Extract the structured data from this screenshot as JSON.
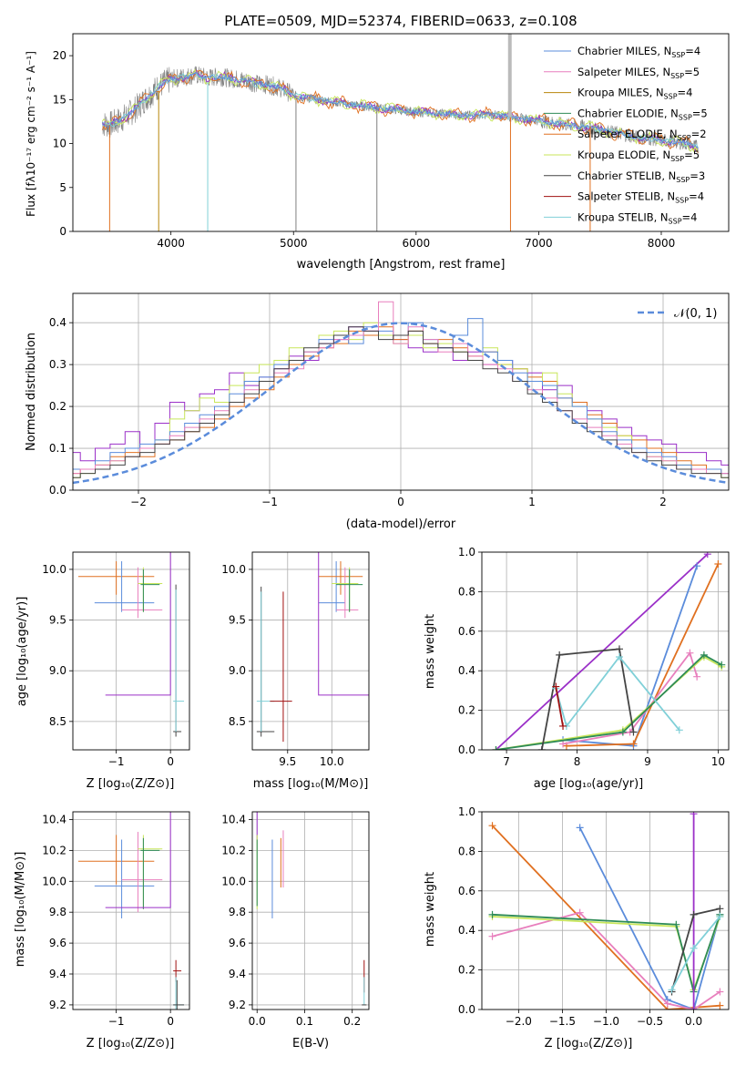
{
  "colors": {
    "chabrier_miles": "#5b8cdb",
    "salpeter_miles": "#e87fbd",
    "kroupa_miles": "#b8860b",
    "chabrier_elodie": "#2e8b57",
    "salpeter_elodie": "#e07020",
    "kroupa_elodie": "#c8e65a",
    "chabrier_stelib": "#444444",
    "salpeter_stelib": "#a01010",
    "kroupa_stelib": "#80d0d8",
    "purple": "#9b30c8",
    "gray_data": "#808080",
    "gauss": "#5b8cdb"
  },
  "chart_data": [
    {
      "id": "spectrum",
      "type": "line",
      "title": "PLATE=0509, MJD=52374, FIBERID=0633, z=0.108",
      "xlabel": "wavelength [Angstrom, rest frame]",
      "ylabel": "Flux [fλ10⁻¹⁷ erg cm⁻² s⁻¹ A⁻¹]",
      "xlim": [
        3200,
        8550
      ],
      "ylim": [
        0,
        22.5
      ],
      "xticks": [
        "4000",
        "5000",
        "6000",
        "7000",
        "8000"
      ],
      "xtick_values": [
        4000,
        5000,
        6000,
        7000,
        8000
      ],
      "yticks": [
        "0",
        "5",
        "10",
        "15",
        "20"
      ],
      "ytick_values": [
        0,
        5,
        10,
        15,
        20
      ],
      "continuum": {
        "x": [
          3440,
          3500,
          3600,
          3700,
          3800,
          3900,
          4000,
          4100,
          4200,
          4300,
          4400,
          4500,
          4600,
          4700,
          4800,
          4900,
          5000,
          5100,
          5200,
          5400,
          5600,
          5800,
          6000,
          6200,
          6400,
          6600,
          6800,
          7000,
          7200,
          7400,
          7600,
          7800,
          8000,
          8200,
          8300
        ],
        "y": [
          12.3,
          12.1,
          12.8,
          13.8,
          15.2,
          16.5,
          17.3,
          17.6,
          17.8,
          17.5,
          17.6,
          17.4,
          17.2,
          16.8,
          16.7,
          16.3,
          15.5,
          15.2,
          15.0,
          14.6,
          14.2,
          13.9,
          13.6,
          13.4,
          13.2,
          13.3,
          13.0,
          12.6,
          12.2,
          11.9,
          11.3,
          10.7,
          10.4,
          10.0,
          9.6
        ]
      },
      "legend": [
        {
          "label": "Chabrier MILES, N",
          "sub": "SSP",
          "tail": "=4",
          "color_key": "chabrier_miles"
        },
        {
          "label": "Salpeter MILES, N",
          "sub": "SSP",
          "tail": "=5",
          "color_key": "salpeter_miles"
        },
        {
          "label": "Kroupa MILES, N",
          "sub": "SSP",
          "tail": "=4",
          "color_key": "kroupa_miles"
        },
        {
          "label": "Chabrier ELODIE, N",
          "sub": "SSP",
          "tail": "=5",
          "color_key": "chabrier_elodie"
        },
        {
          "label": "Salpeter ELODIE, N",
          "sub": "SSP",
          "tail": "=2",
          "color_key": "salpeter_elodie"
        },
        {
          "label": "Kroupa ELODIE, N",
          "sub": "SSP",
          "tail": "=5",
          "color_key": "kroupa_elodie"
        },
        {
          "label": "Chabrier STELIB, N",
          "sub": "SSP",
          "tail": "=3",
          "color_key": "chabrier_stelib"
        },
        {
          "label": "Salpeter STELIB, N",
          "sub": "SSP",
          "tail": "=4",
          "color_key": "salpeter_stelib"
        },
        {
          "label": "Kroupa STELIB, N",
          "sub": "SSP",
          "tail": "=4",
          "color_key": "kroupa_stelib"
        }
      ],
      "legend_position": "upper right"
    },
    {
      "id": "residuals",
      "type": "line",
      "xlabel": "(data-model)/error",
      "ylabel": "Normed distribution",
      "xlim": [
        -2.5,
        2.5
      ],
      "ylim": [
        0,
        0.47
      ],
      "xticks": [
        "−2",
        "−1",
        "0",
        "1",
        "2"
      ],
      "xtick_values": [
        -2,
        -1,
        0,
        1,
        2
      ],
      "yticks": [
        "0.0",
        "0.1",
        "0.2",
        "0.3",
        "0.4"
      ],
      "ytick_values": [
        0,
        0.1,
        0.2,
        0.3,
        0.4
      ],
      "grid": true,
      "gauss_label": "𝒩(0, 1)",
      "legend_position": "upper right",
      "series": [
        {
          "color_key": "purple",
          "values": [
            0.09,
            0.07,
            0.1,
            0.11,
            0.14,
            0.1,
            0.16,
            0.21,
            0.19,
            0.23,
            0.24,
            0.28,
            0.25,
            0.27,
            0.29,
            0.32,
            0.31,
            0.35,
            0.36,
            0.39,
            0.38,
            0.37,
            0.36,
            0.34,
            0.33,
            0.34,
            0.31,
            0.33,
            0.3,
            0.31,
            0.29,
            0.28,
            0.24,
            0.25,
            0.21,
            0.19,
            0.17,
            0.15,
            0.13,
            0.12,
            0.11,
            0.09,
            0.09,
            0.07,
            0.06
          ]
        },
        {
          "color_key": "salpeter_elodie",
          "values": [
            0.04,
            0.05,
            0.06,
            0.08,
            0.09,
            0.08,
            0.11,
            0.12,
            0.14,
            0.15,
            0.17,
            0.2,
            0.22,
            0.24,
            0.27,
            0.3,
            0.32,
            0.34,
            0.35,
            0.38,
            0.37,
            0.39,
            0.36,
            0.38,
            0.35,
            0.36,
            0.34,
            0.32,
            0.33,
            0.3,
            0.29,
            0.27,
            0.26,
            0.22,
            0.21,
            0.18,
            0.16,
            0.13,
            0.12,
            0.1,
            0.09,
            0.07,
            0.06,
            0.05,
            0.04
          ]
        },
        {
          "color_key": "kroupa_elodie",
          "values": [
            0.03,
            0.04,
            0.06,
            0.07,
            0.08,
            0.1,
            0.12,
            0.17,
            0.19,
            0.22,
            0.21,
            0.25,
            0.28,
            0.3,
            0.31,
            0.34,
            0.33,
            0.37,
            0.38,
            0.36,
            0.4,
            0.37,
            0.35,
            0.37,
            0.34,
            0.35,
            0.33,
            0.31,
            0.34,
            0.3,
            0.29,
            0.26,
            0.28,
            0.23,
            0.2,
            0.17,
            0.15,
            0.13,
            0.1,
            0.08,
            0.07,
            0.06,
            0.05,
            0.04,
            0.03
          ]
        },
        {
          "color_key": "chabrier_miles",
          "values": [
            0.05,
            0.05,
            0.07,
            0.09,
            0.1,
            0.11,
            0.12,
            0.14,
            0.16,
            0.18,
            0.2,
            0.23,
            0.26,
            0.27,
            0.3,
            0.31,
            0.33,
            0.36,
            0.37,
            0.35,
            0.39,
            0.38,
            0.37,
            0.4,
            0.36,
            0.34,
            0.37,
            0.41,
            0.33,
            0.31,
            0.28,
            0.26,
            0.25,
            0.22,
            0.2,
            0.17,
            0.14,
            0.12,
            0.1,
            0.09,
            0.08,
            0.06,
            0.05,
            0.05,
            0.04
          ]
        },
        {
          "color_key": "salpeter_miles",
          "values": [
            0.04,
            0.05,
            0.06,
            0.07,
            0.08,
            0.1,
            0.11,
            0.13,
            0.15,
            0.17,
            0.19,
            0.21,
            0.24,
            0.26,
            0.28,
            0.29,
            0.33,
            0.34,
            0.36,
            0.37,
            0.38,
            0.45,
            0.35,
            0.39,
            0.36,
            0.33,
            0.35,
            0.32,
            0.3,
            0.29,
            0.26,
            0.24,
            0.22,
            0.19,
            0.17,
            0.15,
            0.13,
            0.11,
            0.09,
            0.08,
            0.07,
            0.05,
            0.05,
            0.04,
            0.04
          ]
        },
        {
          "color_key": "chabrier_stelib",
          "values": [
            0.03,
            0.04,
            0.05,
            0.06,
            0.08,
            0.09,
            0.11,
            0.12,
            0.14,
            0.16,
            0.18,
            0.21,
            0.23,
            0.26,
            0.29,
            0.31,
            0.34,
            0.35,
            0.37,
            0.39,
            0.38,
            0.36,
            0.37,
            0.38,
            0.35,
            0.34,
            0.33,
            0.31,
            0.29,
            0.28,
            0.26,
            0.23,
            0.21,
            0.19,
            0.16,
            0.14,
            0.12,
            0.1,
            0.09,
            0.07,
            0.06,
            0.05,
            0.04,
            0.04,
            0.03
          ]
        }
      ]
    },
    {
      "id": "age_vs_Z",
      "type": "scatter",
      "xlabel": "Z [log₁₀(Z/Z⊙)]",
      "ylabel": "age  [log₁₀(age/yr)]",
      "xlim": [
        -1.8,
        0.35
      ],
      "ylim": [
        8.22,
        10.17
      ],
      "xticks": [
        "−1",
        "0"
      ],
      "xtick_values": [
        -1,
        0
      ],
      "yticks": [
        "8.5",
        "9.0",
        "9.5",
        "10.0"
      ],
      "ytick_values": [
        8.5,
        9.0,
        9.5,
        10.0
      ],
      "grid": true
    },
    {
      "id": "age_vs_mass",
      "type": "scatter",
      "xlabel": "mass [log₁₀(M/M⊙)]",
      "xlim": [
        9.1,
        10.42
      ],
      "ylim": [
        8.22,
        10.17
      ],
      "xticks": [
        "9.5",
        "10.0"
      ],
      "xtick_values": [
        9.5,
        10.0
      ],
      "yticks": [
        "8.5",
        "9.0",
        "9.5",
        "10.0"
      ],
      "ytick_values": [
        8.5,
        9.0,
        9.5,
        10.0
      ],
      "grid": true
    },
    {
      "id": "weight_vs_age",
      "type": "line",
      "xlabel": "age  [log₁₀(age/yr)]",
      "ylabel": "mass weight",
      "xlim": [
        6.65,
        10.15
      ],
      "ylim": [
        0,
        1
      ],
      "xticks": [
        "7",
        "8",
        "9",
        "10"
      ],
      "xtick_values": [
        7,
        8,
        9,
        10
      ],
      "yticks": [
        "0.0",
        "0.2",
        "0.4",
        "0.6",
        "0.8",
        "1.0"
      ],
      "ytick_values": [
        0,
        0.2,
        0.4,
        0.6,
        0.8,
        1.0
      ],
      "grid": true,
      "series": [
        {
          "color_key": "purple",
          "x": [
            6.85,
            9.85
          ],
          "y": [
            0.0,
            0.99
          ]
        },
        {
          "color_key": "chabrier_miles",
          "x": [
            7.8,
            8.8,
            9.7
          ],
          "y": [
            0.05,
            0.02,
            0.93
          ]
        },
        {
          "color_key": "salpeter_elodie",
          "x": [
            7.85,
            8.8,
            10.0
          ],
          "y": [
            0.02,
            0.03,
            0.94
          ]
        },
        {
          "color_key": "salpeter_miles",
          "x": [
            7.8,
            8.75,
            9.6,
            9.7
          ],
          "y": [
            0.03,
            0.09,
            0.49,
            0.37
          ]
        },
        {
          "color_key": "kroupa_elodie",
          "x": [
            6.85,
            8.65,
            9.8,
            10.05
          ],
          "y": [
            0.0,
            0.1,
            0.47,
            0.42
          ]
        },
        {
          "color_key": "chabrier_elodie",
          "x": [
            6.85,
            8.65,
            9.8,
            10.05
          ],
          "y": [
            0.0,
            0.09,
            0.48,
            0.43
          ]
        },
        {
          "color_key": "chabrier_stelib",
          "x": [
            7.5,
            7.75,
            8.6,
            8.8
          ],
          "y": [
            0.0,
            0.48,
            0.51,
            0.09
          ]
        },
        {
          "color_key": "kroupa_stelib",
          "x": [
            7.7,
            7.85,
            8.6,
            9.45
          ],
          "y": [
            0.31,
            0.12,
            0.47,
            0.1
          ]
        },
        {
          "color_key": "salpeter_stelib",
          "x": [
            7.7,
            7.8
          ],
          "y": [
            0.32,
            0.12
          ]
        }
      ]
    },
    {
      "id": "mass_vs_Z",
      "type": "scatter",
      "xlabel": "Z [log₁₀(Z/Z⊙)]",
      "ylabel": "mass [log₁₀(M/M⊙)]",
      "xlim": [
        -1.8,
        0.35
      ],
      "ylim": [
        9.17,
        10.45
      ],
      "xticks": [
        "−1",
        "0"
      ],
      "xtick_values": [
        -1,
        0
      ],
      "yticks": [
        "9.2",
        "9.4",
        "9.6",
        "9.8",
        "10.0",
        "10.2",
        "10.4"
      ],
      "ytick_values": [
        9.2,
        9.4,
        9.6,
        9.8,
        10.0,
        10.2,
        10.4
      ],
      "grid": true
    },
    {
      "id": "mass_vs_ebv",
      "type": "scatter",
      "xlabel": "E(B-V)",
      "xlim": [
        -0.01,
        0.235
      ],
      "ylim": [
        9.17,
        10.45
      ],
      "xticks": [
        "0.0",
        "0.1",
        "0.2"
      ],
      "xtick_values": [
        0.0,
        0.1,
        0.2
      ],
      "yticks": [
        "9.2",
        "9.4",
        "9.6",
        "9.8",
        "10.0",
        "10.2",
        "10.4"
      ],
      "ytick_values": [
        9.2,
        9.4,
        9.6,
        9.8,
        10.0,
        10.2,
        10.4
      ],
      "grid": true
    },
    {
      "id": "weight_vs_Z",
      "type": "line",
      "xlabel": "Z [log₁₀(Z/Z⊙)]",
      "ylabel": "mass weight",
      "xlim": [
        -2.42,
        0.4
      ],
      "ylim": [
        0,
        1
      ],
      "xticks": [
        "−2.0",
        "−1.5",
        "−1.0",
        "−0.5",
        "0.0"
      ],
      "xtick_values": [
        -2.0,
        -1.5,
        -1.0,
        -0.5,
        0.0
      ],
      "yticks": [
        "0.0",
        "0.2",
        "0.4",
        "0.6",
        "0.8",
        "1.0"
      ],
      "ytick_values": [
        0,
        0.2,
        0.4,
        0.6,
        0.8,
        1.0
      ],
      "grid": true,
      "series": [
        {
          "color_key": "salpeter_elodie",
          "x": [
            -2.3,
            -0.3,
            0.3
          ],
          "y": [
            0.93,
            0.0,
            0.02
          ]
        },
        {
          "color_key": "chabrier_miles",
          "x": [
            -1.3,
            -0.3,
            0.0,
            0.3
          ],
          "y": [
            0.92,
            0.05,
            0.0,
            0.48
          ]
        },
        {
          "color_key": "salpeter_miles",
          "x": [
            -2.3,
            -1.3,
            -0.3,
            0.0,
            0.3
          ],
          "y": [
            0.37,
            0.49,
            0.03,
            0.0,
            0.09
          ]
        },
        {
          "color_key": "kroupa_elodie",
          "x": [
            -2.3,
            -0.2,
            0.0,
            0.3
          ],
          "y": [
            0.47,
            0.42,
            0.1,
            0.47
          ]
        },
        {
          "color_key": "chabrier_elodie",
          "x": [
            -2.3,
            -0.2,
            0.0,
            0.3
          ],
          "y": [
            0.48,
            0.43,
            0.09,
            0.48
          ]
        },
        {
          "color_key": "purple",
          "x": [
            0.0,
            0.0
          ],
          "y": [
            0.0,
            0.99
          ]
        },
        {
          "color_key": "chabrier_stelib",
          "x": [
            -0.25,
            0.0,
            0.3
          ],
          "y": [
            0.09,
            0.48,
            0.51
          ]
        },
        {
          "color_key": "kroupa_stelib",
          "x": [
            -0.25,
            0.0,
            0.3
          ],
          "y": [
            0.1,
            0.31,
            0.47
          ]
        }
      ]
    }
  ]
}
